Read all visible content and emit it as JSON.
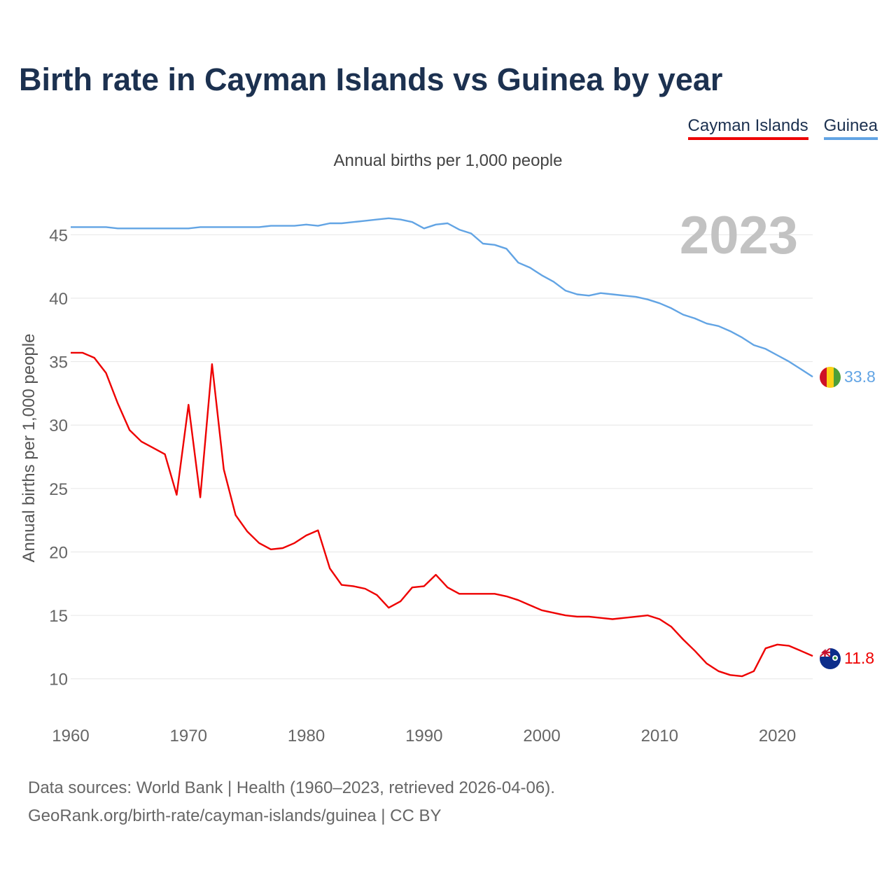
{
  "chart_data": {
    "type": "line",
    "title": "Birth rate in Cayman Islands vs Guinea by year",
    "subtitle": "Annual births per 1,000 people",
    "ylabel": "Annual births per 1,000 people",
    "xlabel": "",
    "year_overlay": "2023",
    "xlim": [
      1960,
      2023
    ],
    "ylim": [
      7.5,
      47.5
    ],
    "x_ticks": [
      1960,
      1970,
      1980,
      1990,
      2000,
      2010,
      2020
    ],
    "y_ticks": [
      10,
      15,
      20,
      25,
      30,
      35,
      40,
      45
    ],
    "grid": true,
    "legend_position": "top-right",
    "series": [
      {
        "name": "Cayman Islands",
        "color": "#ee0000",
        "end_label": "11.8",
        "flag_icon": "cayman-islands-flag-icon",
        "x": [
          1960,
          1961,
          1962,
          1963,
          1964,
          1965,
          1966,
          1967,
          1968,
          1969,
          1970,
          1971,
          1972,
          1973,
          1974,
          1975,
          1976,
          1977,
          1978,
          1979,
          1980,
          1981,
          1982,
          1983,
          1984,
          1985,
          1986,
          1987,
          1988,
          1989,
          1990,
          1991,
          1992,
          1993,
          1994,
          1995,
          1996,
          1997,
          1998,
          1999,
          2000,
          2001,
          2002,
          2003,
          2004,
          2005,
          2006,
          2007,
          2008,
          2009,
          2010,
          2011,
          2012,
          2013,
          2014,
          2015,
          2016,
          2017,
          2018,
          2019,
          2020,
          2021,
          2022,
          2023
        ],
        "values": [
          35.7,
          35.7,
          35.3,
          34.1,
          31.7,
          29.6,
          28.7,
          28.2,
          27.7,
          24.5,
          31.6,
          24.3,
          34.8,
          26.5,
          22.9,
          21.6,
          20.7,
          20.2,
          20.3,
          20.7,
          21.3,
          21.7,
          18.7,
          17.4,
          17.3,
          17.1,
          16.6,
          15.6,
          16.1,
          17.2,
          17.3,
          18.2,
          17.2,
          16.7,
          16.7,
          16.7,
          16.7,
          16.5,
          16.2,
          15.8,
          15.4,
          15.2,
          15.0,
          14.9,
          14.9,
          14.8,
          14.7,
          14.8,
          14.9,
          15.0,
          14.7,
          14.1,
          13.1,
          12.2,
          11.2,
          10.6,
          10.3,
          10.2,
          10.6,
          12.4,
          12.7,
          12.6,
          12.2,
          11.8
        ]
      },
      {
        "name": "Guinea",
        "color": "#62a4e4",
        "end_label": "33.8",
        "flag_icon": "guinea-flag-icon",
        "x": [
          1960,
          1961,
          1962,
          1963,
          1964,
          1965,
          1966,
          1967,
          1968,
          1969,
          1970,
          1971,
          1972,
          1973,
          1974,
          1975,
          1976,
          1977,
          1978,
          1979,
          1980,
          1981,
          1982,
          1983,
          1984,
          1985,
          1986,
          1987,
          1988,
          1989,
          1990,
          1991,
          1992,
          1993,
          1994,
          1995,
          1996,
          1997,
          1998,
          1999,
          2000,
          2001,
          2002,
          2003,
          2004,
          2005,
          2006,
          2007,
          2008,
          2009,
          2010,
          2011,
          2012,
          2013,
          2014,
          2015,
          2016,
          2017,
          2018,
          2019,
          2020,
          2021,
          2022,
          2023
        ],
        "values": [
          45.6,
          45.6,
          45.6,
          45.6,
          45.5,
          45.5,
          45.5,
          45.5,
          45.5,
          45.5,
          45.5,
          45.6,
          45.6,
          45.6,
          45.6,
          45.6,
          45.6,
          45.7,
          45.7,
          45.7,
          45.8,
          45.7,
          45.9,
          45.9,
          46.0,
          46.1,
          46.2,
          46.3,
          46.2,
          46.0,
          45.5,
          45.8,
          45.9,
          45.4,
          45.1,
          44.3,
          44.2,
          43.9,
          42.8,
          42.4,
          41.8,
          41.3,
          40.6,
          40.3,
          40.2,
          40.4,
          40.3,
          40.2,
          40.1,
          39.9,
          39.6,
          39.2,
          38.7,
          38.4,
          38.0,
          37.8,
          37.4,
          36.9,
          36.3,
          36.0,
          35.5,
          35.0,
          34.4,
          33.8
        ]
      }
    ]
  },
  "legend": {
    "items": [
      "Cayman Islands",
      "Guinea"
    ]
  },
  "footer": {
    "source_line": "Data sources: World Bank | Health (1960–2023, retrieved 2026-04-06).",
    "url_line": "GeoRank.org/birth-rate/cayman-islands/guinea | CC BY"
  }
}
